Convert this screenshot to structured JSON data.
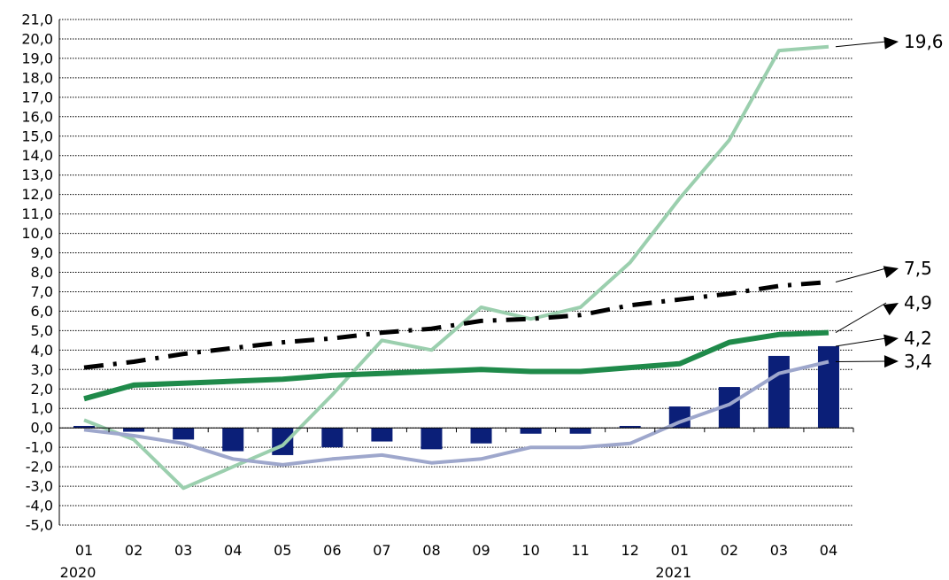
{
  "chart_data": {
    "type": "bar+line",
    "categories": [
      "01",
      "02",
      "03",
      "04",
      "05",
      "06",
      "07",
      "08",
      "09",
      "10",
      "11",
      "12",
      "01",
      "02",
      "03",
      "04"
    ],
    "year_labels": [
      {
        "index": 0,
        "label": "2020"
      },
      {
        "index": 12,
        "label": "2021"
      }
    ],
    "ylim": [
      -5,
      21
    ],
    "yticks": [
      21,
      20,
      19,
      18,
      17,
      16,
      15,
      14,
      13,
      12,
      11,
      10,
      9,
      8,
      7,
      6,
      5,
      4,
      3,
      2,
      1,
      0,
      -1,
      -2,
      -3,
      -4,
      -5
    ],
    "ytick_labels": [
      "21,0",
      "20,0",
      "19,0",
      "18,0",
      "17,0",
      "16,0",
      "15,0",
      "14,0",
      "13,0",
      "12,0",
      "11,0",
      "10,0",
      "9,0",
      "8,0",
      "7,0",
      "6,0",
      "5,0",
      "4,0",
      "3,0",
      "2,0",
      "1,0",
      "0,0",
      "-1,0",
      "-2,0",
      "-3,0",
      "-4,0",
      "-5,0"
    ],
    "grid": true,
    "bars": {
      "color": "#0b1f78",
      "values": [
        0.1,
        -0.2,
        -0.6,
        -1.2,
        -1.4,
        -1.0,
        -0.7,
        -1.1,
        -0.8,
        -0.3,
        -0.3,
        0.1,
        1.1,
        2.1,
        3.7,
        4.2
      ]
    },
    "series": [
      {
        "color": "#9bcfae",
        "style": "solid",
        "width": 4,
        "values": [
          0.4,
          -0.6,
          -3.1,
          -2.0,
          -0.9,
          1.7,
          4.5,
          4.0,
          6.2,
          5.6,
          6.2,
          8.5,
          11.8,
          14.8,
          19.4,
          19.6
        ]
      },
      {
        "color": "#000000",
        "style": "dashdot",
        "width": 5,
        "values": [
          3.1,
          3.4,
          3.8,
          4.1,
          4.4,
          4.6,
          4.9,
          5.1,
          5.5,
          5.6,
          5.8,
          6.3,
          6.6,
          6.9,
          7.3,
          7.5
        ]
      },
      {
        "color": "#1f8a4a",
        "style": "solid",
        "width": 6,
        "values": [
          1.5,
          2.2,
          2.3,
          2.4,
          2.5,
          2.7,
          2.8,
          2.9,
          3.0,
          2.9,
          2.9,
          3.1,
          3.3,
          4.4,
          4.8,
          4.9
        ]
      },
      {
        "color": "#9ea7cc",
        "style": "solid",
        "width": 4,
        "values": [
          -0.1,
          -0.4,
          -0.8,
          -1.6,
          -1.9,
          -1.6,
          -1.4,
          -1.8,
          -1.6,
          -1.0,
          -1.0,
          -0.8,
          0.3,
          1.2,
          2.8,
          3.4
        ]
      }
    ],
    "end_labels": [
      {
        "text": "19,6",
        "value": 19.6
      },
      {
        "text": "7,5",
        "value": 7.5
      },
      {
        "text": "4,9",
        "value": 4.9
      },
      {
        "text": "4,2",
        "value": 4.2
      },
      {
        "text": "3,4",
        "value": 3.4
      }
    ]
  }
}
